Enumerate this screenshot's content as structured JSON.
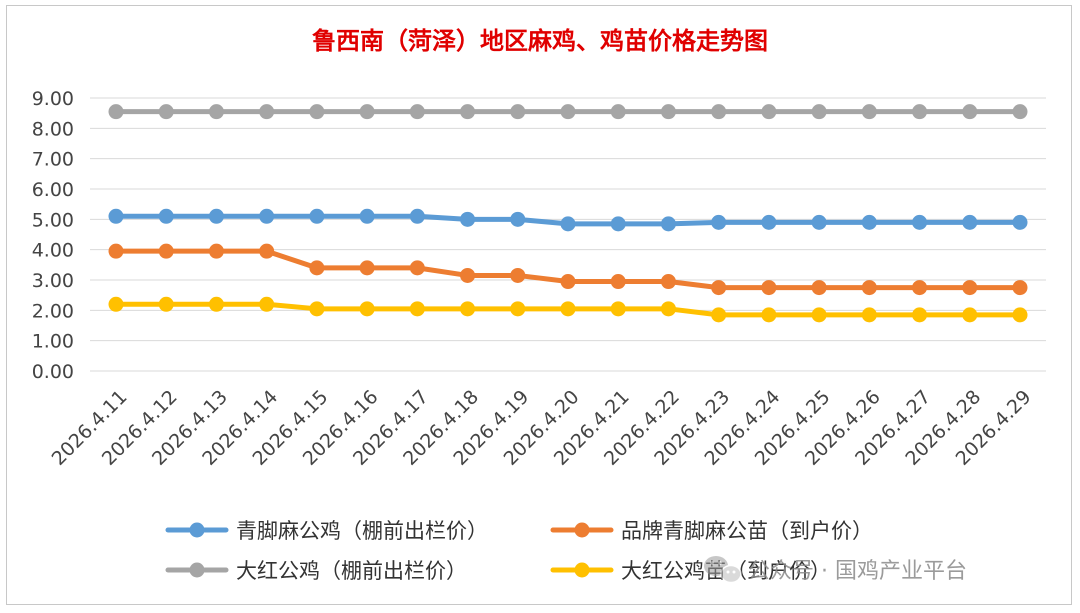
{
  "chart_data": {
    "type": "line",
    "title": "鲁西南（菏泽）地区麻鸡、鸡苗价格走势图",
    "xlabel": "",
    "ylabel": "",
    "ylim": [
      0,
      9
    ],
    "y_ticks": [
      "0.00",
      "1.00",
      "2.00",
      "3.00",
      "4.00",
      "5.00",
      "6.00",
      "7.00",
      "8.00",
      "9.00"
    ],
    "grid": true,
    "legend_position": "bottom",
    "categories": [
      "2026.4.11",
      "2026.4.12",
      "2026.4.13",
      "2026.4.14",
      "2026.4.15",
      "2026.4.16",
      "2026.4.17",
      "2026.4.18",
      "2026.4.19",
      "2026.4.20",
      "2026.4.21",
      "2026.4.22",
      "2026.4.23",
      "2026.4.24",
      "2026.4.25",
      "2026.4.26",
      "2026.4.27",
      "2026.4.28",
      "2026.4.29"
    ],
    "series": [
      {
        "name": "青脚麻公鸡（棚前出栏价）",
        "color": "#5b9bd5",
        "values": [
          5.1,
          5.1,
          5.1,
          5.1,
          5.1,
          5.1,
          5.1,
          5.0,
          5.0,
          4.85,
          4.85,
          4.85,
          4.9,
          4.9,
          4.9,
          4.9,
          4.9,
          4.9,
          4.9
        ]
      },
      {
        "name": "品牌青脚麻公苗（到户价）",
        "color": "#ed7d31",
        "values": [
          3.95,
          3.95,
          3.95,
          3.95,
          3.4,
          3.4,
          3.4,
          3.15,
          3.15,
          2.95,
          2.95,
          2.95,
          2.75,
          2.75,
          2.75,
          2.75,
          2.75,
          2.75,
          2.75
        ]
      },
      {
        "name": "大红公鸡（棚前出栏价）",
        "color": "#a5a5a5",
        "values": [
          8.55,
          8.55,
          8.55,
          8.55,
          8.55,
          8.55,
          8.55,
          8.55,
          8.55,
          8.55,
          8.55,
          8.55,
          8.55,
          8.55,
          8.55,
          8.55,
          8.55,
          8.55,
          8.55
        ]
      },
      {
        "name": "大红公鸡苗（到户价）",
        "color": "#ffc000",
        "values": [
          2.2,
          2.2,
          2.2,
          2.2,
          2.05,
          2.05,
          2.05,
          2.05,
          2.05,
          2.05,
          2.05,
          2.05,
          1.85,
          1.85,
          1.85,
          1.85,
          1.85,
          1.85,
          1.85
        ]
      }
    ]
  },
  "watermark": {
    "icon": "wechat-icon",
    "text": "公众号 · 国鸡产业平台"
  }
}
